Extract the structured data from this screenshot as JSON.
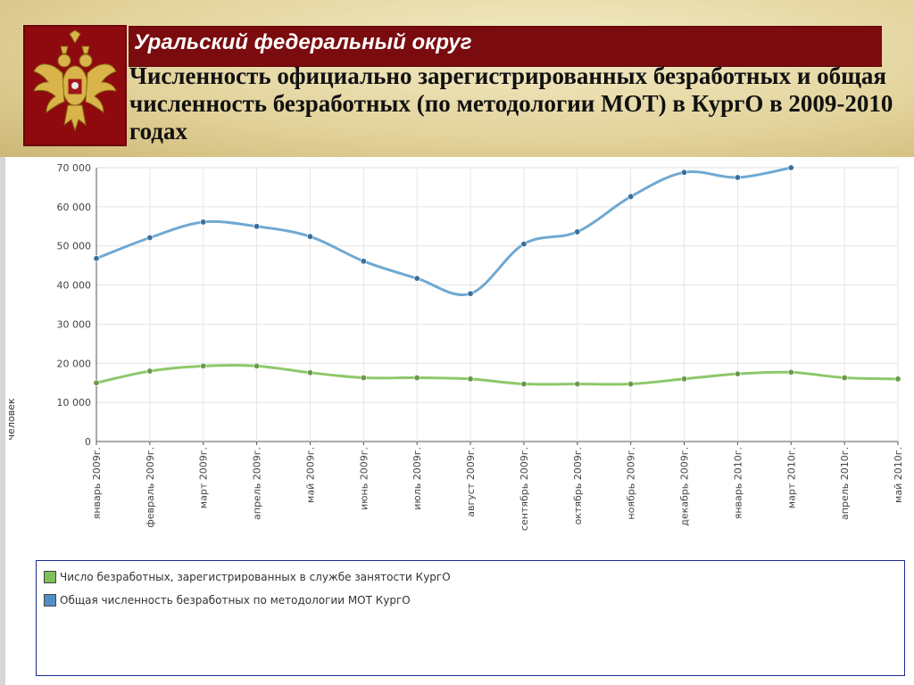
{
  "header": {
    "region": "Уральский федеральный округ",
    "title": "Численность официально зарегистрированных безработных и общая численность безработных (по методологии МОТ) в КургО в 2009-2010 годах",
    "emblem_icon": "double-headed-eagle-emblem"
  },
  "colors": {
    "region_bar": "#7a0b0e",
    "registered": "#8dc86a",
    "ilo": "#6fa9d3"
  },
  "chart_data": {
    "type": "line",
    "ylabel": "человек",
    "ylim": [
      0,
      70000
    ],
    "yticks": [
      0,
      10000,
      20000,
      30000,
      40000,
      50000,
      60000,
      70000
    ],
    "ytick_labels": [
      "0",
      "10 000",
      "20 000",
      "30 000",
      "40 000",
      "50 000",
      "60 000",
      "70 000"
    ],
    "categories": [
      "январь 2009г.",
      "февраль 2009г.",
      "март 2009г.",
      "апрель 2009г.",
      "май 2009г.",
      "июнь 2009г.",
      "июль 2009г.",
      "август 2009г.",
      "сентябрь 2009г.",
      "октябрь 2009г.",
      "ноябрь 2009г.",
      "декабрь 2009г.",
      "январь 2010г.",
      "март 2010г.",
      "апрель 2010г.",
      "май 2010г."
    ],
    "grid": true,
    "legend_position": "bottom",
    "series": [
      {
        "name": "Число безработных, зарегистрированных в службе занятости  КургО",
        "color": "#8dc86a",
        "values": [
          15000,
          18000,
          19300,
          19300,
          17600,
          16300,
          16300,
          16000,
          14700,
          14700,
          14700,
          16000,
          17300,
          17700,
          16300,
          16000
        ]
      },
      {
        "name": "Общая численность безработных по методологии МОТ  КургО",
        "color": "#6fa9d3",
        "values": [
          46800,
          52100,
          56100,
          55000,
          52400,
          46100,
          41700,
          37800,
          50500,
          53600,
          62600,
          68800,
          67500,
          70000,
          null,
          null
        ]
      }
    ]
  }
}
